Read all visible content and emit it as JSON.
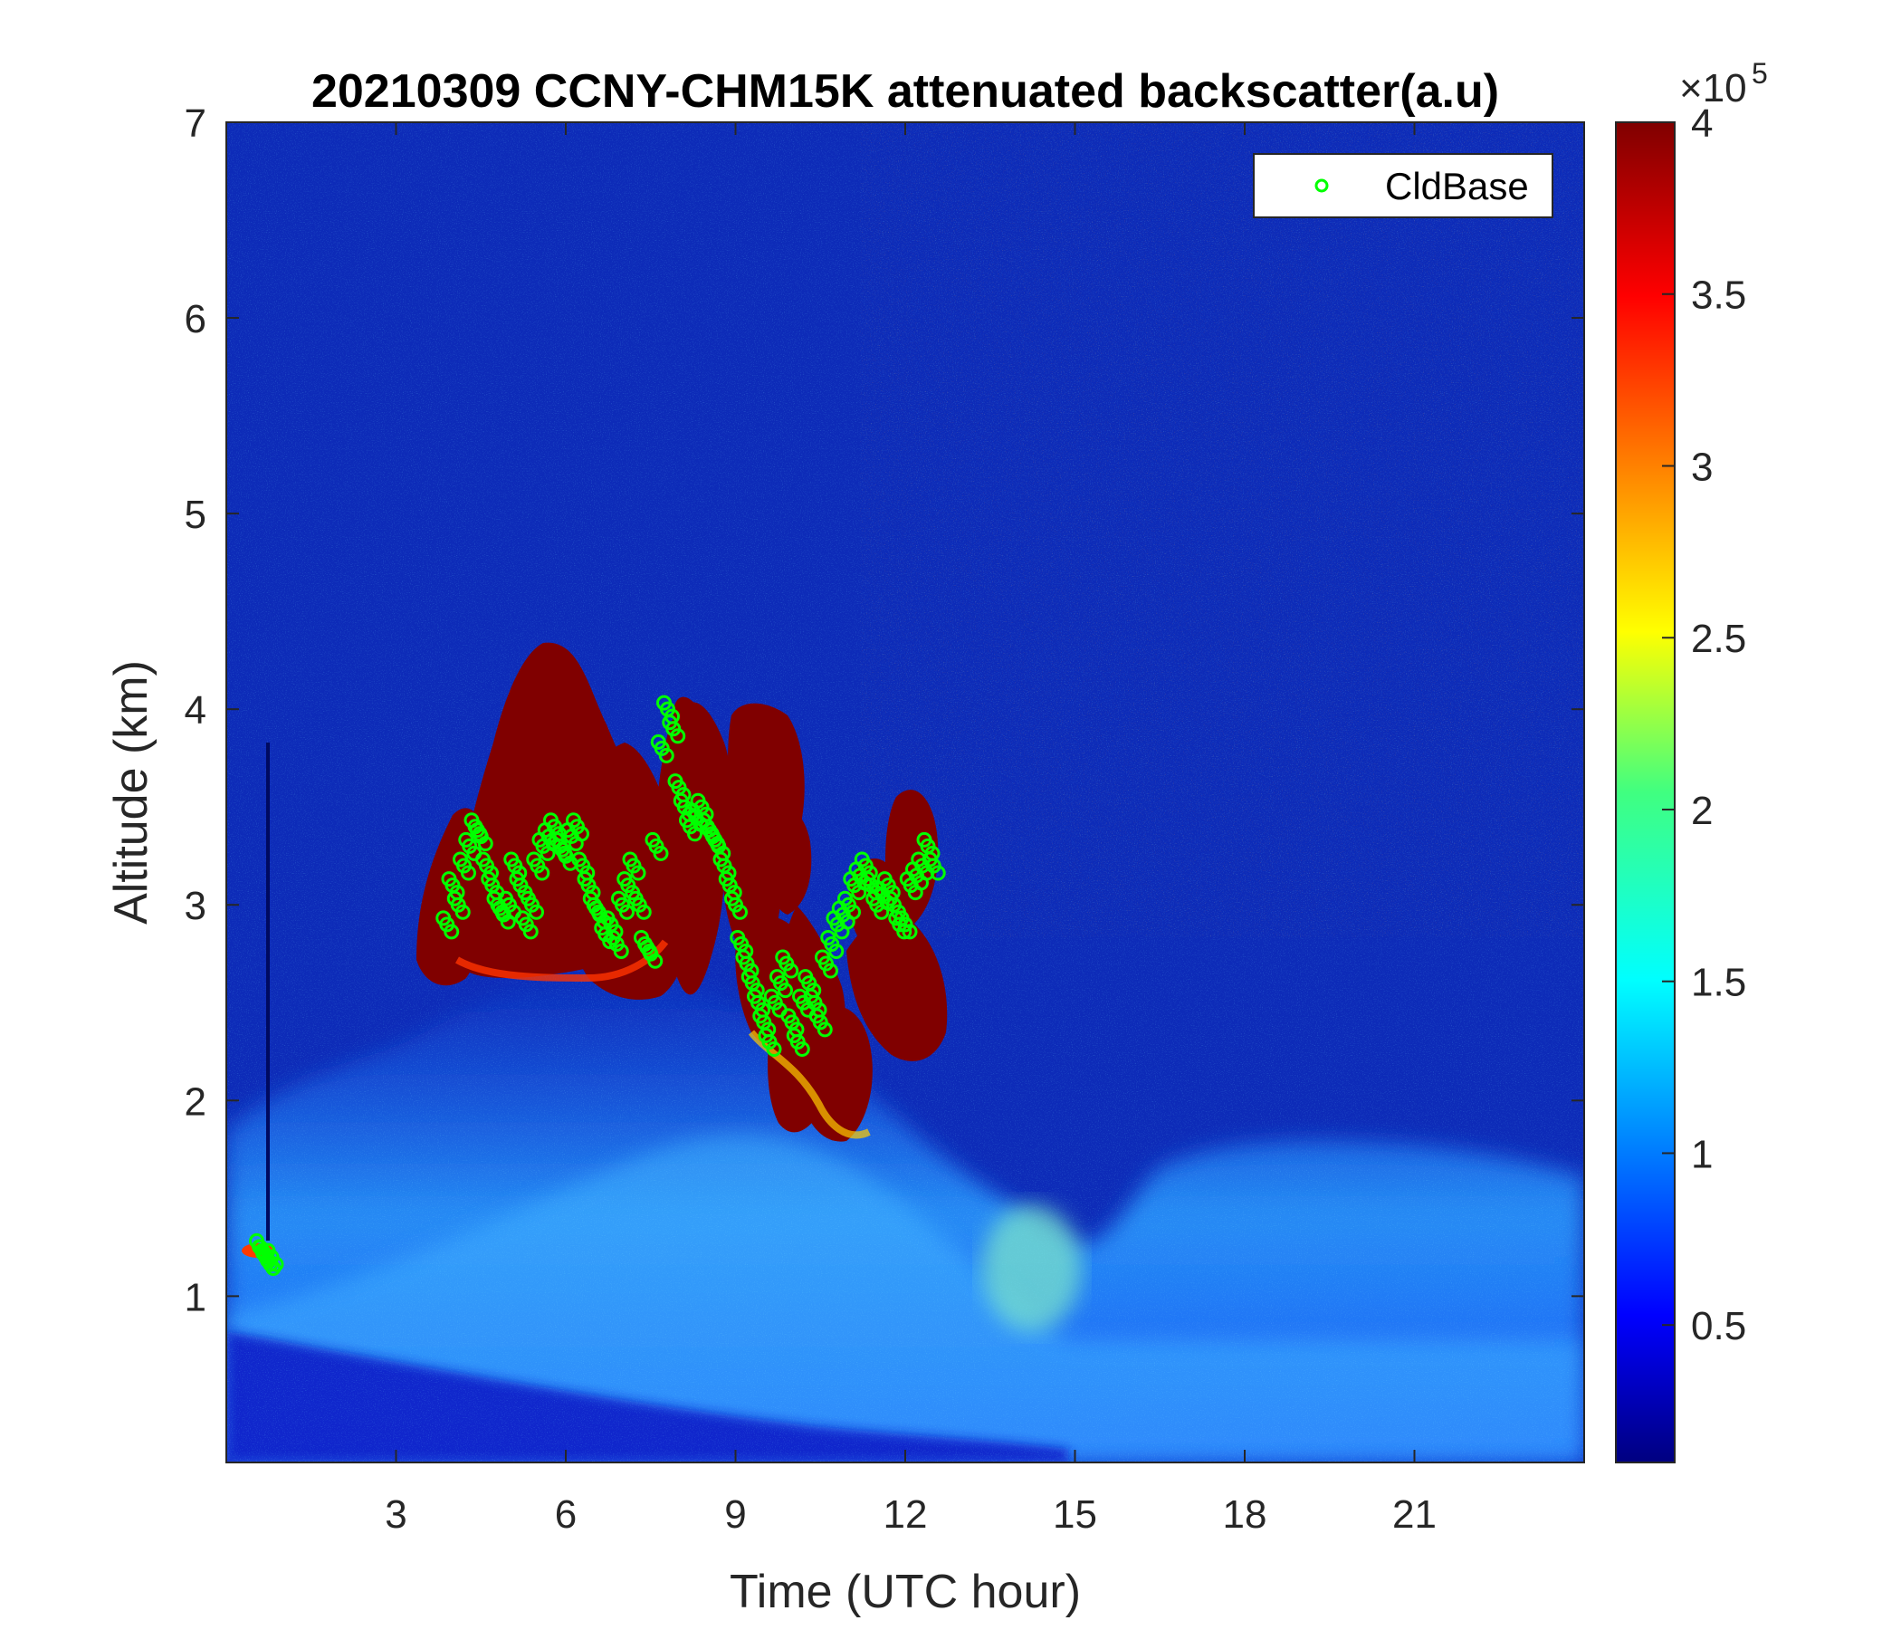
{
  "chart_data": {
    "type": "heatmap",
    "title": "20210309 CCNY-CHM15K attenuated backscatter(a.u)",
    "xlabel": "Time (UTC hour)",
    "ylabel": "Altitude (km)",
    "xlim": [
      0,
      24
    ],
    "ylim": [
      0.15,
      7
    ],
    "xticks": [
      3,
      6,
      9,
      12,
      15,
      18,
      21
    ],
    "yticks": [
      1,
      2,
      3,
      4,
      5,
      6,
      7
    ],
    "colorbar": {
      "colormap": "jet",
      "range": [
        0.1,
        4
      ],
      "ticks": [
        0.5,
        1,
        1.5,
        2,
        2.5,
        3,
        3.5,
        4
      ],
      "multiplier": "×10^5",
      "multiplier_base": "×10",
      "multiplier_exp": "5"
    },
    "legend": {
      "position": "top-right",
      "entries": [
        "CldBase"
      ]
    },
    "series": [
      {
        "name": "CldBase",
        "marker": "circle",
        "color": "#00ff00",
        "x": [
          0.6,
          0.65,
          0.7,
          0.75,
          0.8,
          3.9,
          4.0,
          4.1,
          4.2,
          4.3,
          4.4,
          4.5,
          4.6,
          4.7,
          4.8,
          4.9,
          5.0,
          5.1,
          5.2,
          5.3,
          5.4,
          5.5,
          5.6,
          5.7,
          5.8,
          5.9,
          6.0,
          6.1,
          6.2,
          6.3,
          6.4,
          6.5,
          6.6,
          6.7,
          6.8,
          6.9,
          7.0,
          7.1,
          7.2,
          7.3,
          7.4,
          7.5,
          7.6,
          7.7,
          7.8,
          7.9,
          8.0,
          8.1,
          8.2,
          8.3,
          8.4,
          8.5,
          8.6,
          8.7,
          8.8,
          8.9,
          9.0,
          9.1,
          9.2,
          9.3,
          9.4,
          9.5,
          9.6,
          9.7,
          9.8,
          9.9,
          10.0,
          10.1,
          10.2,
          10.3,
          10.4,
          10.5,
          10.6,
          10.7,
          10.8,
          10.9,
          11.0,
          11.1,
          11.2,
          11.3,
          11.4,
          11.5,
          11.6,
          11.7,
          11.8,
          11.9,
          12.0,
          12.1,
          12.2,
          12.3,
          12.4,
          12.5
        ],
        "y": [
          1.25,
          1.22,
          1.2,
          1.18,
          1.2,
          2.9,
          3.1,
          3.0,
          3.2,
          3.3,
          3.4,
          3.35,
          3.2,
          3.1,
          3.0,
          2.95,
          3.0,
          3.2,
          3.1,
          2.9,
          3.0,
          3.2,
          3.3,
          3.35,
          3.4,
          3.3,
          3.25,
          3.35,
          3.4,
          3.2,
          3.1,
          3.0,
          2.95,
          2.85,
          2.9,
          2.8,
          3.0,
          3.1,
          3.2,
          3.0,
          2.8,
          2.75,
          3.3,
          3.8,
          4.0,
          3.9,
          3.6,
          3.5,
          3.4,
          3.45,
          3.5,
          3.4,
          3.35,
          3.3,
          3.2,
          3.1,
          3.0,
          2.8,
          2.7,
          2.6,
          2.5,
          2.4,
          2.3,
          2.5,
          2.6,
          2.7,
          2.4,
          2.3,
          2.5,
          2.6,
          2.5,
          2.4,
          2.7,
          2.8,
          2.9,
          2.95,
          3.0,
          3.1,
          3.15,
          3.2,
          3.1,
          3.0,
          3.05,
          3.1,
          3.0,
          2.9,
          2.9,
          3.1,
          3.15,
          3.2,
          3.3,
          3.2
        ]
      }
    ]
  }
}
